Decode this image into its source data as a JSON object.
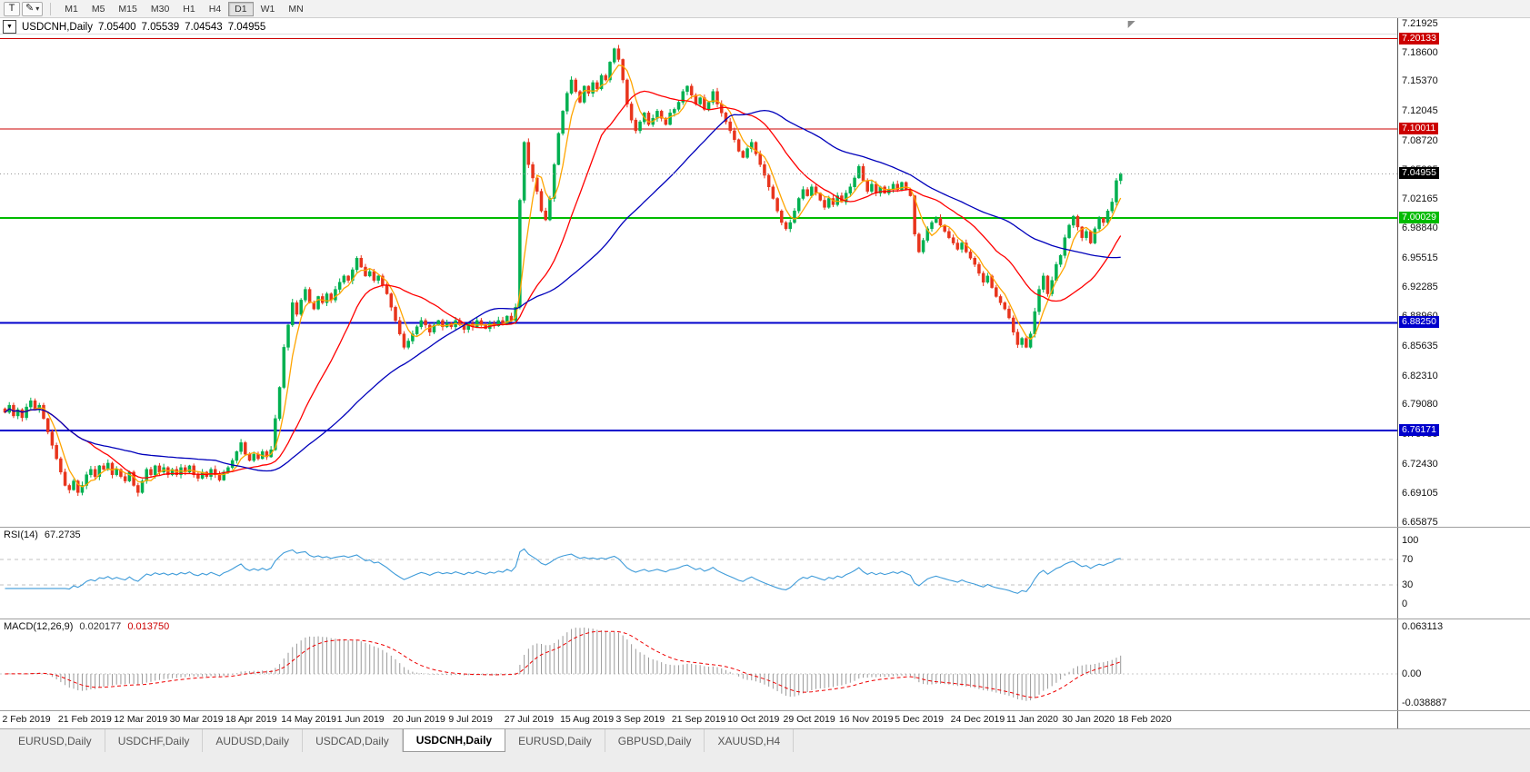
{
  "toolbar": {
    "text_tool_label": "T",
    "draw_tool_icon": "pencil-icon",
    "draw_tool_glyph": "✎",
    "caret_icon": "chevron-down-icon",
    "caret_glyph": "▾",
    "timeframes": [
      "M1",
      "M5",
      "M15",
      "M30",
      "H1",
      "H4",
      "D1",
      "W1",
      "MN"
    ],
    "active_timeframe": "D1"
  },
  "chart": {
    "type": "candlestick",
    "title": "USDCNH,Daily",
    "collapse_icon": "triangle-down-icon",
    "collapse_glyph": "▼",
    "open": "7.05400",
    "high": "7.05539",
    "low": "7.04543",
    "close": "7.04955",
    "up_color": "#00B050",
    "down_color": "#E8341C",
    "scale": {
      "pmax": 7.2243,
      "pmin": 6.6536
    },
    "price_axis_labels": [
      "7.21925",
      "7.18600",
      "7.15370",
      "7.12045",
      "7.08720",
      "7.05395",
      "7.02165",
      "6.98840",
      "6.95515",
      "6.92285",
      "6.88960",
      "6.85635",
      "6.82310",
      "6.79080",
      "6.75755",
      "6.72430",
      "6.69105",
      "6.65875"
    ],
    "hlines": [
      {
        "price": 7.20133,
        "label": "7.20133",
        "color": "#CC0000",
        "width": 1
      },
      {
        "price": 7.10011,
        "label": "7.10011",
        "color": "#CC0000",
        "width": 1
      },
      {
        "price": 7.00029,
        "label": "7.00029",
        "color": "#00BB00",
        "width": 2
      },
      {
        "price": 6.8825,
        "label": "6.88250",
        "color": "#0000CC",
        "width": 2
      },
      {
        "price": 6.76171,
        "label": "6.76171",
        "color": "#0000CC",
        "width": 2
      }
    ],
    "bid": {
      "price": 7.04955,
      "label": "7.04955"
    },
    "mas": [
      {
        "period": 5,
        "color": "#FFA500",
        "name": "ma-fast-orange"
      },
      {
        "period": 20,
        "color": "#FF0000",
        "name": "ma-mid-red"
      },
      {
        "period": 50,
        "color": "#0000BB",
        "name": "ma-slow-blue"
      }
    ],
    "date_labels": [
      "2 Feb 2019",
      "21 Feb 2019",
      "12 Mar 2019",
      "30 Mar 2019",
      "18 Apr 2019",
      "14 May 2019",
      "1 Jun 2019",
      "20 Jun 2019",
      "9 Jul 2019",
      "27 Jul 2019",
      "15 Aug 2019",
      "3 Sep 2019",
      "21 Sep 2019",
      "10 Oct 2019",
      "29 Oct 2019",
      "16 Nov 2019",
      "5 Dec 2019",
      "24 Dec 2019",
      "11 Jan 2020",
      "30 Jan 2020",
      "18 Feb 2020"
    ],
    "bars_per_label": 13,
    "candles": {
      "closes": [
        6.782,
        6.79,
        6.778,
        6.785,
        6.776,
        6.788,
        6.795,
        6.785,
        6.79,
        6.775,
        6.76,
        6.745,
        6.73,
        6.715,
        6.7,
        6.695,
        6.705,
        6.692,
        6.7,
        6.712,
        6.718,
        6.71,
        6.722,
        6.718,
        6.725,
        6.712,
        6.718,
        6.71,
        6.705,
        6.715,
        6.7,
        6.692,
        6.705,
        6.718,
        6.712,
        6.722,
        6.715,
        6.72,
        6.712,
        6.718,
        6.712,
        6.72,
        6.715,
        6.722,
        6.712,
        6.708,
        6.715,
        6.71,
        6.718,
        6.712,
        6.706,
        6.715,
        6.72,
        6.728,
        6.738,
        6.748,
        6.735,
        6.728,
        6.735,
        6.73,
        6.738,
        6.732,
        6.74,
        6.775,
        6.81,
        6.855,
        6.88,
        6.905,
        6.892,
        6.908,
        6.92,
        6.905,
        6.898,
        6.912,
        6.905,
        6.915,
        6.908,
        6.92,
        6.928,
        6.935,
        6.93,
        6.942,
        6.955,
        6.945,
        6.935,
        6.94,
        6.93,
        6.935,
        6.925,
        6.915,
        6.9,
        6.885,
        6.87,
        6.855,
        6.862,
        6.87,
        6.878,
        6.885,
        6.88,
        6.872,
        6.88,
        6.885,
        6.878,
        6.882,
        6.878,
        6.885,
        6.88,
        6.875,
        6.882,
        6.878,
        6.885,
        6.88,
        6.876,
        6.882,
        6.879,
        6.885,
        6.882,
        6.89,
        6.885,
        6.9,
        7.02,
        7.085,
        7.06,
        7.045,
        7.03,
        7.008,
        6.998,
        7.022,
        7.06,
        7.095,
        7.12,
        7.14,
        7.155,
        7.142,
        7.13,
        7.148,
        7.14,
        7.152,
        7.145,
        7.16,
        7.155,
        7.175,
        7.19,
        7.178,
        7.155,
        7.128,
        7.11,
        7.098,
        7.108,
        7.118,
        7.105,
        7.112,
        7.12,
        7.112,
        7.105,
        7.118,
        7.122,
        7.13,
        7.142,
        7.148,
        7.138,
        7.128,
        7.135,
        7.122,
        7.13,
        7.142,
        7.128,
        7.118,
        7.108,
        7.098,
        7.088,
        7.075,
        7.068,
        7.078,
        7.085,
        7.072,
        7.06,
        7.048,
        7.035,
        7.022,
        7.008,
        6.995,
        6.988,
        6.995,
        7.008,
        7.022,
        7.032,
        7.025,
        7.035,
        7.028,
        7.02,
        7.012,
        7.022,
        7.015,
        7.025,
        7.018,
        7.028,
        7.035,
        7.045,
        7.058,
        7.042,
        7.03,
        7.038,
        7.028,
        7.035,
        7.028,
        7.032,
        7.038,
        7.032,
        7.04,
        7.032,
        7.025,
        6.982,
        6.962,
        6.975,
        6.988,
        6.995,
        7.0,
        6.992,
        6.985,
        6.978,
        6.972,
        6.965,
        6.972,
        6.962,
        6.955,
        6.948,
        6.938,
        6.928,
        6.935,
        6.922,
        6.912,
        6.905,
        6.898,
        6.888,
        6.872,
        6.858,
        6.865,
        6.855,
        6.87,
        6.895,
        6.92,
        6.935,
        6.915,
        6.93,
        6.948,
        6.958,
        6.978,
        6.992,
        7.002,
        6.99,
        6.978,
        6.985,
        6.972,
        6.988,
        7.0,
        6.995,
        7.008,
        7.018,
        7.042,
        7.0496
      ]
    }
  },
  "rsi": {
    "label": "RSI(14)",
    "value": "67.2735",
    "period": 14,
    "axis_labels": [
      "100",
      "70",
      "30",
      "0"
    ],
    "levels": [
      70,
      30
    ],
    "range": [
      0,
      100
    ],
    "color": "#3E9BD9"
  },
  "macd": {
    "label": "MACD(12,26,9)",
    "main_value": "0.020177",
    "signal_value": "0.013750",
    "fast": 12,
    "slow": 26,
    "signal": 9,
    "axis_labels": [
      "0.063113",
      "0.00",
      "-0.038887"
    ],
    "range": [
      -0.038887,
      0.063113
    ],
    "hist_color": "#9a9a9a",
    "signal_color": "#EE0000"
  },
  "tabs": [
    {
      "label": "EURUSD,Daily",
      "active": false
    },
    {
      "label": "USDCHF,Daily",
      "active": false
    },
    {
      "label": "AUDUSD,Daily",
      "active": false
    },
    {
      "label": "USDCAD,Daily",
      "active": false
    },
    {
      "label": "USDCNH,Daily",
      "active": true
    },
    {
      "label": "EURUSD,Daily",
      "active": false
    },
    {
      "label": "GBPUSD,Daily",
      "active": false
    },
    {
      "label": "XAUUSD,H4",
      "active": false
    }
  ]
}
